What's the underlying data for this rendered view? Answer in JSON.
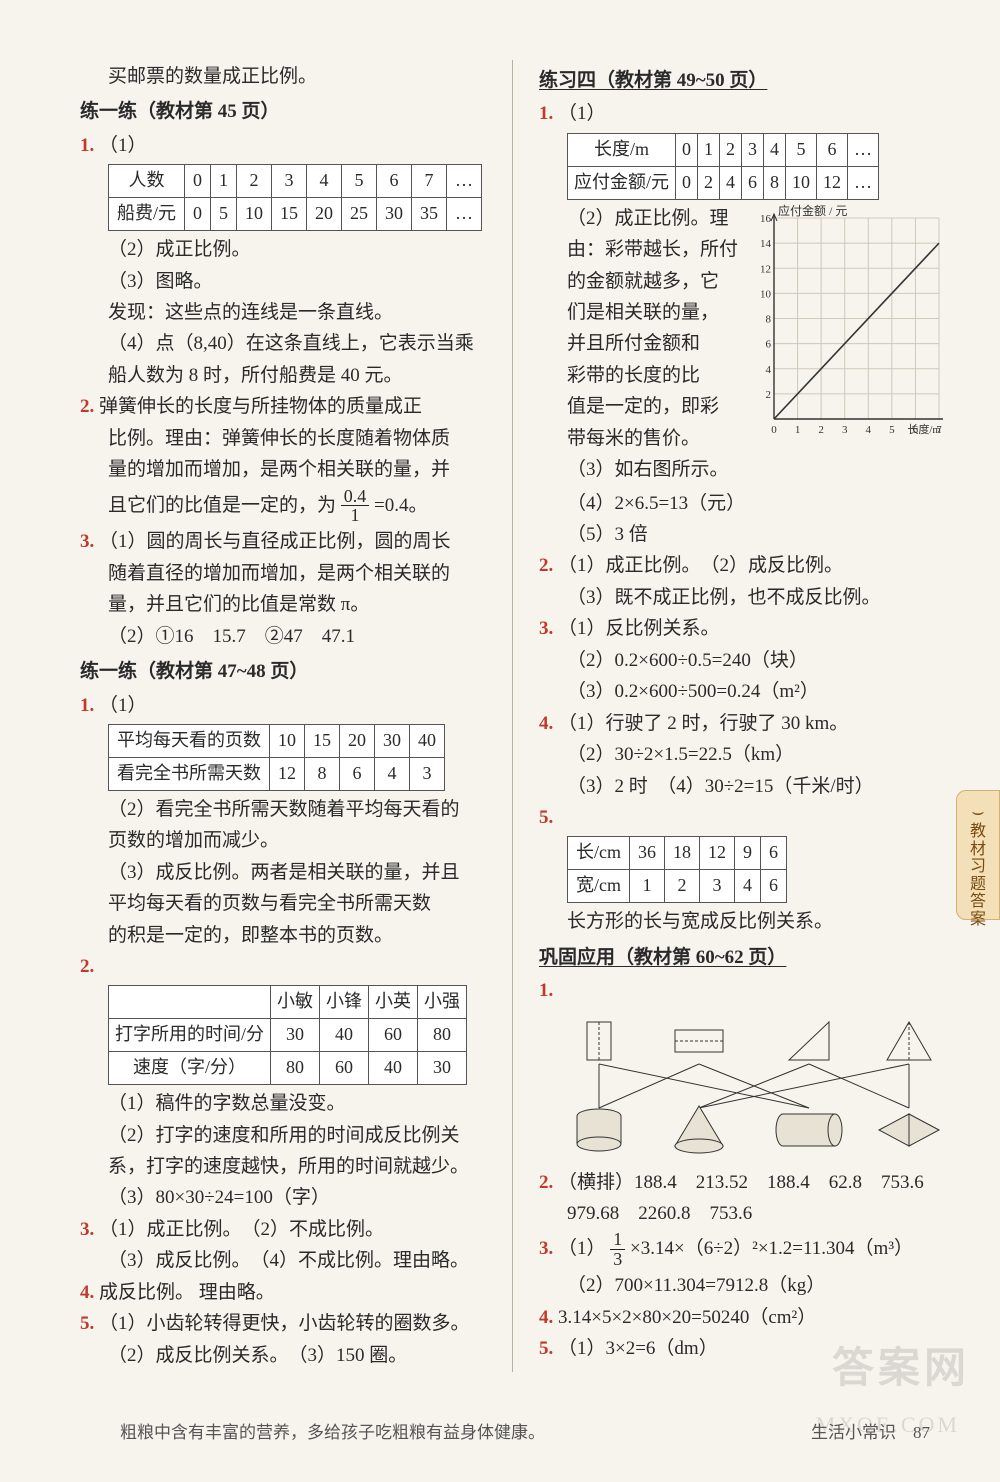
{
  "colors": {
    "page_bg": "#f7f4ee",
    "text": "#2a2a2a",
    "qnum_red": "#c0392b",
    "rule": "#b8b0a0",
    "tab_bg": "#f4e0b8",
    "tab_border": "#d4b070",
    "tab_text": "#7a4a10",
    "footer": "#555555",
    "watermark": "rgba(120,120,120,0.22)",
    "table_border": "#555555",
    "chart_grid": "#d0c8b8",
    "chart_axis": "#333333"
  },
  "typography": {
    "body_fontsize": 19,
    "table_fontsize": 18,
    "footer_fontsize": 17,
    "tab_fontsize": 16
  },
  "left": {
    "intro": "买邮票的数量成正比例。",
    "sec45": {
      "title": "练一练（教材第 45 页）",
      "q1": {
        "num": "1.",
        "p1": "（1）",
        "table": {
          "rows": [
            [
              "人数",
              "0",
              "1",
              "2",
              "3",
              "4",
              "5",
              "6",
              "7",
              "…"
            ],
            [
              "船费/元",
              "0",
              "5",
              "10",
              "15",
              "20",
              "25",
              "30",
              "35",
              "…"
            ]
          ]
        },
        "p2": "（2）成正比例。",
        "p3": "（3）图略。",
        "p4": "发现：这些点的连线是一条直线。",
        "p5a": "（4）点（8,40）在这条直线上，它表示当乘",
        "p5b": "船人数为 8 时，所付船费是 40 元。"
      },
      "q2": {
        "num": "2.",
        "l1": "弹簧伸长的长度与所挂物体的质量成正",
        "l2": "比例。理由：弹簧伸长的长度随着物体质",
        "l3": "量的增加而增加，是两个相关联的量，并",
        "l4a": "且它们的比值是一定的，为 ",
        "frac_num": "0.4",
        "frac_den": "1",
        "l4b": "=0.4。"
      },
      "q3": {
        "num": "3.",
        "l1": "（1）圆的周长与直径成正比例，圆的周长",
        "l2": "随着直径的增加而增加，是两个相关联的",
        "l3": "量，并且它们的比值是常数 π。",
        "l4": "（2）①16　15.7　②47　47.1"
      }
    },
    "sec47": {
      "title": "练一练（教材第 47~48 页）",
      "q1": {
        "num": "1.",
        "p1": "（1）",
        "table": {
          "rows": [
            [
              "平均每天看的页数",
              "10",
              "15",
              "20",
              "30",
              "40"
            ],
            [
              "看完全书所需天数",
              "12",
              "8",
              "6",
              "4",
              "3"
            ]
          ]
        },
        "p2a": "（2）看完全书所需天数随着平均每天看的",
        "p2b": "页数的增加而减少。",
        "p3a": "（3）成反比例。两者是相关联的量，并且",
        "p3b": "平均每天看的页数与看完全书所需天数",
        "p3c": "的积是一定的，即整本书的页数。"
      },
      "q2": {
        "num": "2.",
        "table": {
          "rows": [
            [
              "",
              "小敏",
              "小锋",
              "小英",
              "小强"
            ],
            [
              "打字所用的时间/分",
              "30",
              "40",
              "60",
              "80"
            ],
            [
              "速度（字/分）",
              "80",
              "60",
              "40",
              "30"
            ]
          ]
        },
        "p1": "（1）稿件的字数总量没变。",
        "p2a": "（2）打字的速度和所用的时间成反比例关",
        "p2b": "系，打字的速度越快，所用的时间就越少。",
        "p3": "（3）80×30÷24=100（字）"
      },
      "q3": {
        "num": "3.",
        "l1": "（1）成正比例。　（2）不成比例。",
        "l2": "（3）成反比例。　（4）不成比例。理由略。"
      },
      "q4": {
        "num": "4.",
        "text": "成反比例。  理由略。"
      },
      "q5": {
        "num": "5.",
        "l1": "（1）小齿轮转得更快，小齿轮转的圈数多。",
        "l2": "（2）成反比例关系。　（3）150 圈。"
      }
    }
  },
  "right": {
    "sec49": {
      "title": "练习四（教材第 49~50 页）",
      "q1": {
        "num": "1.",
        "p1": "（1）",
        "table": {
          "rows": [
            [
              "长度/m",
              "0",
              "1",
              "2",
              "3",
              "4",
              "5",
              "6",
              "…"
            ],
            [
              "应付金额/元",
              "0",
              "2",
              "4",
              "6",
              "8",
              "10",
              "12",
              "…"
            ]
          ]
        },
        "chart": {
          "y_label": "应付金额 / 元",
          "x_label": "长度/m",
          "xlim": [
            0,
            7
          ],
          "ylim": [
            0,
            16
          ],
          "xticks": [
            "0",
            "1",
            "2",
            "3",
            "4",
            "5",
            "6",
            "7"
          ],
          "yticks": [
            "2",
            "4",
            "6",
            "8",
            "10",
            "12",
            "14",
            "16"
          ],
          "line": [
            [
              0,
              0
            ],
            [
              7,
              14
            ]
          ],
          "grid_color": "#d0c8b8",
          "axis_color": "#333333",
          "bg": "#ffffff"
        },
        "wrap_lines": [
          "（2）成正比例。理",
          "由：彩带越长，所付",
          "的金额就越多，它",
          "们是相关联的量，",
          "并且所付金额和",
          "彩带的长度的比",
          "值是一定的，即彩",
          "带每米的售价。",
          "（3）如右图所示。"
        ],
        "p4": "（4）2×6.5=13（元）",
        "p5": "（5）3 倍"
      },
      "q2": {
        "num": "2.",
        "l1": "（1）成正比例。　（2）成反比例。",
        "l2": "（3）既不成正比例，也不成反比例。"
      },
      "q3": {
        "num": "3.",
        "l1": "（1）反比例关系。",
        "l2": "（2）0.2×600÷0.5=240（块）",
        "l3": "（3）0.2×600÷500=0.24（m²）"
      },
      "q4": {
        "num": "4.",
        "l1": "（1）行驶了 2 时，行驶了 30 km。",
        "l2": "（2）30÷2×1.5=22.5（km）",
        "l3": "（3）2 时　（4）30÷2=15（千米/时）"
      },
      "q5": {
        "num": "5.",
        "table": {
          "rows": [
            [
              "长/cm",
              "36",
              "18",
              "12",
              "9",
              "6"
            ],
            [
              "宽/cm",
              "1",
              "2",
              "3",
              "4",
              "6"
            ]
          ]
        },
        "caption": "长方形的长与宽成反比例关系。"
      }
    },
    "sec60": {
      "title": "巩固应用（教材第 60~62 页）",
      "q1": {
        "num": "1.",
        "diagram": {
          "top_shapes": [
            "rect_v",
            "rect_h",
            "tri_right",
            "tri_iso"
          ],
          "bottom_shapes": [
            "cylinder_v",
            "cone",
            "cylinder_h",
            "bicone"
          ],
          "connections": [
            [
              0,
              0
            ],
            [
              0,
              2
            ],
            [
              1,
              2
            ],
            [
              1,
              0
            ],
            [
              2,
              3
            ],
            [
              2,
              1
            ],
            [
              3,
              3
            ],
            [
              3,
              1
            ]
          ],
          "stroke": "#333333",
          "fill": "#e8e2d4"
        }
      },
      "q2": {
        "num": "2.",
        "l1": "（横排）188.4　213.52　188.4　62.8　753.6",
        "l2": "979.68　2260.8　753.6"
      },
      "q3": {
        "num": "3.",
        "frac_num": "1",
        "frac_den": "3",
        "l1a": "（1）",
        "l1b": "×3.14×（6÷2）²×1.2=11.304（m³）",
        "l2": "（2）700×11.304=7912.8（kg）"
      },
      "q4": {
        "num": "4.",
        "text": "3.14×5×2×80×20=50240（cm²）"
      },
      "q5": {
        "num": "5.",
        "text": "（1）3×2=6（dm）"
      }
    }
  },
  "side_tab": {
    "icon": "⌣",
    "lines": [
      "教",
      "材",
      "习",
      "题",
      "答",
      "案"
    ]
  },
  "footer": {
    "tip": "粗粮中含有丰富的营养，多给孩子吃粗粮有益身体健康。",
    "right_label": "生活小常识",
    "page_num": "87"
  },
  "watermarks": {
    "top": "答案网",
    "bottom": "MXQE.COM"
  }
}
